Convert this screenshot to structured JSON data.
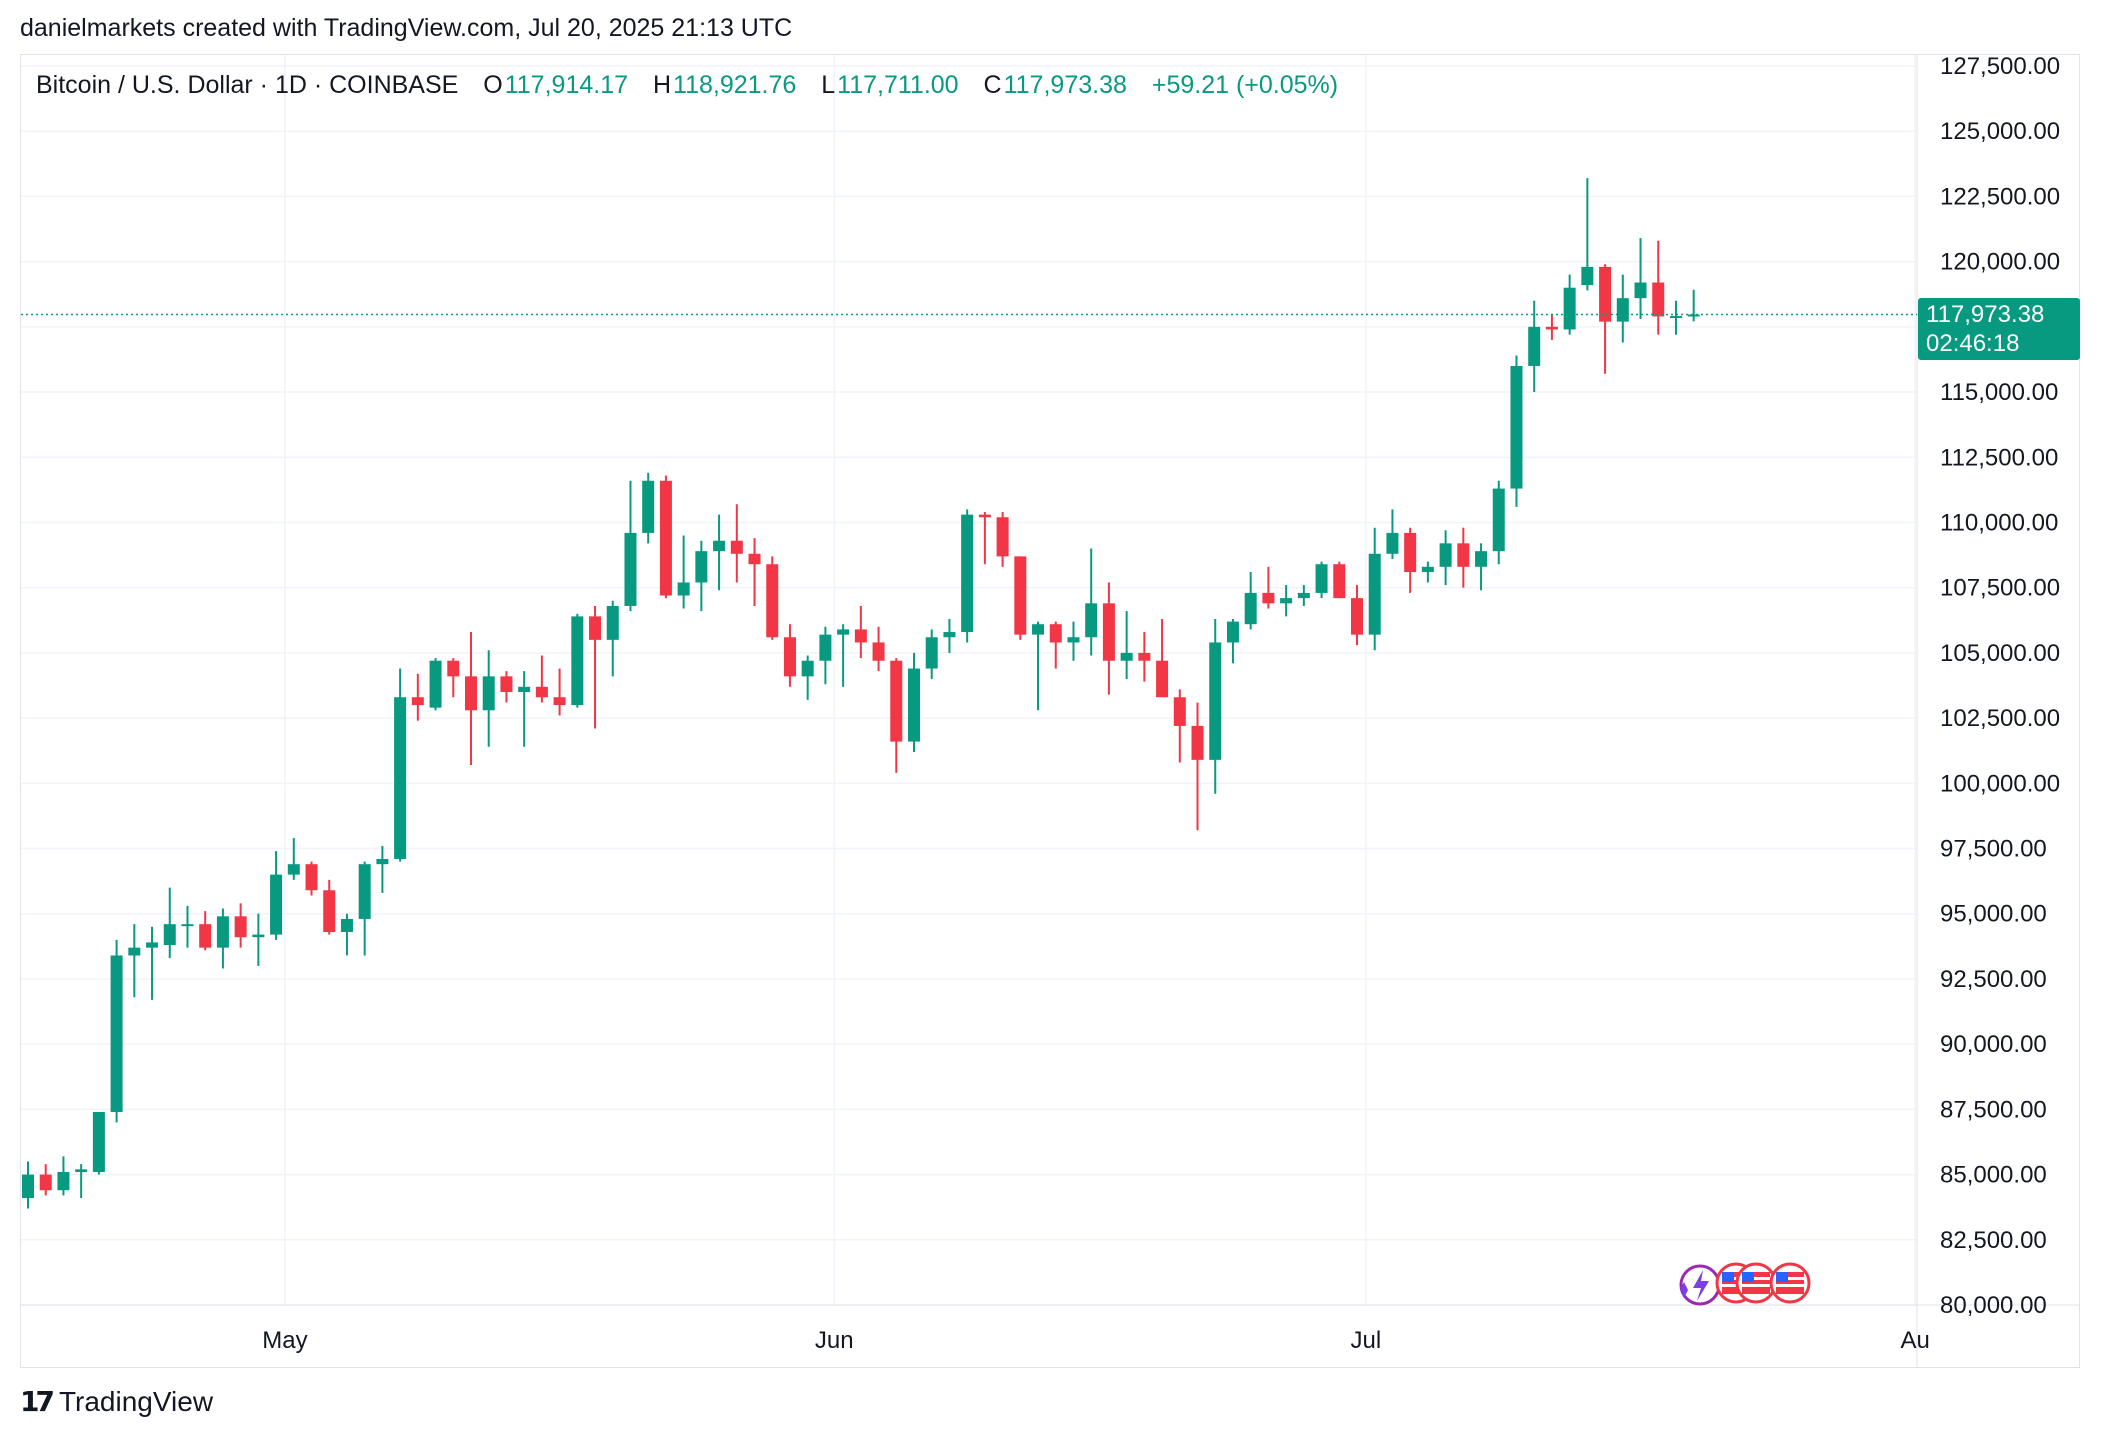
{
  "caption": "danielmarkets created with TradingView.com, Jul 20, 2025 21:13 UTC",
  "legend": {
    "symbol": "Bitcoin / U.S. Dollar · 1D · COINBASE",
    "o_label": "O",
    "o_value": "117,914.17",
    "h_label": "H",
    "h_value": "118,921.76",
    "l_label": "L",
    "l_value": "117,711.00",
    "c_label": "C",
    "c_value": "117,973.38",
    "change": "+59.21 (+0.05%)"
  },
  "last_price": {
    "price": "117,973.38",
    "countdown": "02:46:18"
  },
  "footer": {
    "brand": "TradingView",
    "mark": "17"
  },
  "colors": {
    "up": "#089981",
    "down": "#f23645",
    "grid": "#f0f3fa",
    "axis_text": "#131722"
  },
  "chart_data": {
    "type": "candlestick",
    "title": "Bitcoin / U.S. Dollar · 1D · COINBASE",
    "xlabel": "",
    "ylabel": "",
    "ylim": [
      80000,
      127500
    ],
    "y_ticks": [
      "127,500.00",
      "125,000.00",
      "122,500.00",
      "120,000.00",
      "115,000.00",
      "112,500.00",
      "110,000.00",
      "107,500.00",
      "105,000.00",
      "102,500.00",
      "100,000.00",
      "97,500.00",
      "95,000.00",
      "92,500.00",
      "90,000.00",
      "87,500.00",
      "85,000.00",
      "82,500.00",
      "80,000.00"
    ],
    "x_ticks": [
      {
        "label": "May",
        "index": 14.5
      },
      {
        "label": "Jun",
        "index": 45.5
      },
      {
        "label": "Jul",
        "index": 75.5
      },
      {
        "label": "Au",
        "index": 106.5
      }
    ],
    "last_close": 117973.38,
    "series": [
      {
        "date": "2025-04-16",
        "o": 84100,
        "h": 85500,
        "l": 83700,
        "c": 85000
      },
      {
        "date": "2025-04-17",
        "o": 85000,
        "h": 85400,
        "l": 84200,
        "c": 84400
      },
      {
        "date": "2025-04-18",
        "o": 84400,
        "h": 85700,
        "l": 84200,
        "c": 85100
      },
      {
        "date": "2025-04-19",
        "o": 85100,
        "h": 85400,
        "l": 84100,
        "c": 85200
      },
      {
        "date": "2025-04-20",
        "o": 85100,
        "h": 87400,
        "l": 85000,
        "c": 87400
      },
      {
        "date": "2025-04-21",
        "o": 87400,
        "h": 94000,
        "l": 87000,
        "c": 93400
      },
      {
        "date": "2025-04-22",
        "o": 93400,
        "h": 94600,
        "l": 91800,
        "c": 93700
      },
      {
        "date": "2025-04-23",
        "o": 93700,
        "h": 94500,
        "l": 91700,
        "c": 93900
      },
      {
        "date": "2025-04-24",
        "o": 93800,
        "h": 96000,
        "l": 93300,
        "c": 94600
      },
      {
        "date": "2025-04-25",
        "o": 94600,
        "h": 95300,
        "l": 93700,
        "c": 94600
      },
      {
        "date": "2025-04-26",
        "o": 94600,
        "h": 95100,
        "l": 93600,
        "c": 93700
      },
      {
        "date": "2025-04-27",
        "o": 93700,
        "h": 95200,
        "l": 92900,
        "c": 94900
      },
      {
        "date": "2025-04-28",
        "o": 94900,
        "h": 95400,
        "l": 93700,
        "c": 94100
      },
      {
        "date": "2025-04-29",
        "o": 94100,
        "h": 95000,
        "l": 93000,
        "c": 94200
      },
      {
        "date": "2025-04-30",
        "o": 94200,
        "h": 97400,
        "l": 94000,
        "c": 96500
      },
      {
        "date": "2025-05-01",
        "o": 96500,
        "h": 97900,
        "l": 96300,
        "c": 96900
      },
      {
        "date": "2025-05-02",
        "o": 96900,
        "h": 97000,
        "l": 95700,
        "c": 95900
      },
      {
        "date": "2025-05-03",
        "o": 95900,
        "h": 96300,
        "l": 94200,
        "c": 94300
      },
      {
        "date": "2025-05-04",
        "o": 94300,
        "h": 95000,
        "l": 93400,
        "c": 94800
      },
      {
        "date": "2025-05-05",
        "o": 94800,
        "h": 97000,
        "l": 93400,
        "c": 96900
      },
      {
        "date": "2025-05-06",
        "o": 96900,
        "h": 97600,
        "l": 95800,
        "c": 97100
      },
      {
        "date": "2025-05-07",
        "o": 97100,
        "h": 104400,
        "l": 97000,
        "c": 103300
      },
      {
        "date": "2025-05-08",
        "o": 103300,
        "h": 104200,
        "l": 102400,
        "c": 103000
      },
      {
        "date": "2025-05-09",
        "o": 102900,
        "h": 104800,
        "l": 102800,
        "c": 104700
      },
      {
        "date": "2025-05-10",
        "o": 104700,
        "h": 104800,
        "l": 103300,
        "c": 104100
      },
      {
        "date": "2025-05-11",
        "o": 104100,
        "h": 105800,
        "l": 100700,
        "c": 102800
      },
      {
        "date": "2025-05-12",
        "o": 102800,
        "h": 105100,
        "l": 101400,
        "c": 104100
      },
      {
        "date": "2025-05-13",
        "o": 104100,
        "h": 104300,
        "l": 103100,
        "c": 103500
      },
      {
        "date": "2025-05-14",
        "o": 103500,
        "h": 104300,
        "l": 101400,
        "c": 103700
      },
      {
        "date": "2025-05-15",
        "o": 103700,
        "h": 104900,
        "l": 103100,
        "c": 103300
      },
      {
        "date": "2025-05-16",
        "o": 103300,
        "h": 104400,
        "l": 102600,
        "c": 103000
      },
      {
        "date": "2025-05-17",
        "o": 103000,
        "h": 106500,
        "l": 102900,
        "c": 106400
      },
      {
        "date": "2025-05-18",
        "o": 106400,
        "h": 106800,
        "l": 102100,
        "c": 105500
      },
      {
        "date": "2025-05-19",
        "o": 105500,
        "h": 107000,
        "l": 104100,
        "c": 106800
      },
      {
        "date": "2025-05-20",
        "o": 106800,
        "h": 111600,
        "l": 106600,
        "c": 109600
      },
      {
        "date": "2025-05-21",
        "o": 109600,
        "h": 111900,
        "l": 109200,
        "c": 111600
      },
      {
        "date": "2025-05-22",
        "o": 111600,
        "h": 111800,
        "l": 107100,
        "c": 107200
      },
      {
        "date": "2025-05-23",
        "o": 107200,
        "h": 109500,
        "l": 106700,
        "c": 107700
      },
      {
        "date": "2025-05-24",
        "o": 107700,
        "h": 109300,
        "l": 106600,
        "c": 108900
      },
      {
        "date": "2025-05-25",
        "o": 108900,
        "h": 110300,
        "l": 107400,
        "c": 109300
      },
      {
        "date": "2025-05-26",
        "o": 109300,
        "h": 110700,
        "l": 107700,
        "c": 108800
      },
      {
        "date": "2025-05-27",
        "o": 108800,
        "h": 109400,
        "l": 106800,
        "c": 108400
      },
      {
        "date": "2025-05-28",
        "o": 108400,
        "h": 108700,
        "l": 105500,
        "c": 105600
      },
      {
        "date": "2025-05-29",
        "o": 105600,
        "h": 106100,
        "l": 103700,
        "c": 104100
      },
      {
        "date": "2025-05-30",
        "o": 104100,
        "h": 104900,
        "l": 103200,
        "c": 104700
      },
      {
        "date": "2025-05-31",
        "o": 104700,
        "h": 106000,
        "l": 103800,
        "c": 105700
      },
      {
        "date": "2025-06-01",
        "o": 105700,
        "h": 106100,
        "l": 103700,
        "c": 105900
      },
      {
        "date": "2025-06-02",
        "o": 105900,
        "h": 106800,
        "l": 104800,
        "c": 105400
      },
      {
        "date": "2025-06-03",
        "o": 105400,
        "h": 106000,
        "l": 104300,
        "c": 104700
      },
      {
        "date": "2025-06-04",
        "o": 104700,
        "h": 104800,
        "l": 100400,
        "c": 101600
      },
      {
        "date": "2025-06-05",
        "o": 101600,
        "h": 105000,
        "l": 101200,
        "c": 104400
      },
      {
        "date": "2025-06-06",
        "o": 104400,
        "h": 105900,
        "l": 104000,
        "c": 105600
      },
      {
        "date": "2025-06-07",
        "o": 105600,
        "h": 106300,
        "l": 105000,
        "c": 105800
      },
      {
        "date": "2025-06-08",
        "o": 105800,
        "h": 110500,
        "l": 105400,
        "c": 110300
      },
      {
        "date": "2025-06-09",
        "o": 110300,
        "h": 110400,
        "l": 108400,
        "c": 110200
      },
      {
        "date": "2025-06-10",
        "o": 110200,
        "h": 110400,
        "l": 108300,
        "c": 108700
      },
      {
        "date": "2025-06-11",
        "o": 108700,
        "h": 108700,
        "l": 105500,
        "c": 105700
      },
      {
        "date": "2025-06-12",
        "o": 105700,
        "h": 106200,
        "l": 102800,
        "c": 106100
      },
      {
        "date": "2025-06-13",
        "o": 106100,
        "h": 106200,
        "l": 104400,
        "c": 105400
      },
      {
        "date": "2025-06-14",
        "o": 105400,
        "h": 106200,
        "l": 104700,
        "c": 105600
      },
      {
        "date": "2025-06-15",
        "o": 105600,
        "h": 109000,
        "l": 104900,
        "c": 106900
      },
      {
        "date": "2025-06-16",
        "o": 106900,
        "h": 107700,
        "l": 103400,
        "c": 104700
      },
      {
        "date": "2025-06-17",
        "o": 104700,
        "h": 106600,
        "l": 104000,
        "c": 105000
      },
      {
        "date": "2025-06-18",
        "o": 105000,
        "h": 105800,
        "l": 103900,
        "c": 104700
      },
      {
        "date": "2025-06-19",
        "o": 104700,
        "h": 106300,
        "l": 103500,
        "c": 103300
      },
      {
        "date": "2025-06-20",
        "o": 103300,
        "h": 103600,
        "l": 100800,
        "c": 102200
      },
      {
        "date": "2025-06-21",
        "o": 102200,
        "h": 103100,
        "l": 98200,
        "c": 100900
      },
      {
        "date": "2025-06-22",
        "o": 100900,
        "h": 106300,
        "l": 99600,
        "c": 105400
      },
      {
        "date": "2025-06-23",
        "o": 105400,
        "h": 106300,
        "l": 104600,
        "c": 106200
      },
      {
        "date": "2025-06-24",
        "o": 106100,
        "h": 108100,
        "l": 105900,
        "c": 107300
      },
      {
        "date": "2025-06-25",
        "o": 107300,
        "h": 108300,
        "l": 106700,
        "c": 106900
      },
      {
        "date": "2025-06-26",
        "o": 106900,
        "h": 107600,
        "l": 106400,
        "c": 107100
      },
      {
        "date": "2025-06-27",
        "o": 107100,
        "h": 107600,
        "l": 106800,
        "c": 107300
      },
      {
        "date": "2025-06-28",
        "o": 107300,
        "h": 108500,
        "l": 107100,
        "c": 108400
      },
      {
        "date": "2025-06-29",
        "o": 108400,
        "h": 108500,
        "l": 107100,
        "c": 107100
      },
      {
        "date": "2025-06-30",
        "o": 107100,
        "h": 107600,
        "l": 105300,
        "c": 105700
      },
      {
        "date": "2025-07-01",
        "o": 105700,
        "h": 109800,
        "l": 105100,
        "c": 108800
      },
      {
        "date": "2025-07-02",
        "o": 108800,
        "h": 110500,
        "l": 108600,
        "c": 109600
      },
      {
        "date": "2025-07-03",
        "o": 109600,
        "h": 109800,
        "l": 107300,
        "c": 108100
      },
      {
        "date": "2025-07-04",
        "o": 108100,
        "h": 108500,
        "l": 107700,
        "c": 108300
      },
      {
        "date": "2025-07-05",
        "o": 108300,
        "h": 109700,
        "l": 107600,
        "c": 109200
      },
      {
        "date": "2025-07-06",
        "o": 109200,
        "h": 109800,
        "l": 107500,
        "c": 108300
      },
      {
        "date": "2025-07-07",
        "o": 108300,
        "h": 109200,
        "l": 107400,
        "c": 108900
      },
      {
        "date": "2025-07-08",
        "o": 108900,
        "h": 111600,
        "l": 108400,
        "c": 111300
      },
      {
        "date": "2025-07-09",
        "o": 111300,
        "h": 116400,
        "l": 110600,
        "c": 116000
      },
      {
        "date": "2025-07-10",
        "o": 116000,
        "h": 118500,
        "l": 115000,
        "c": 117500
      },
      {
        "date": "2025-07-11",
        "o": 117500,
        "h": 118000,
        "l": 117000,
        "c": 117400
      },
      {
        "date": "2025-07-12",
        "o": 117400,
        "h": 119500,
        "l": 117200,
        "c": 119000
      },
      {
        "date": "2025-07-13",
        "o": 119100,
        "h": 123200,
        "l": 118900,
        "c": 119800
      },
      {
        "date": "2025-07-14",
        "o": 119800,
        "h": 119900,
        "l": 115700,
        "c": 117700
      },
      {
        "date": "2025-07-15",
        "o": 117700,
        "h": 119500,
        "l": 116900,
        "c": 118600
      },
      {
        "date": "2025-07-16",
        "o": 118600,
        "h": 120900,
        "l": 117800,
        "c": 119200
      },
      {
        "date": "2025-07-17",
        "o": 119200,
        "h": 120800,
        "l": 117200,
        "c": 117900
      },
      {
        "date": "2025-07-18",
        "o": 117900,
        "h": 118500,
        "l": 117200,
        "c": 117914
      },
      {
        "date": "2025-07-19",
        "o": 117914.17,
        "h": 118921.76,
        "l": 117711,
        "c": 117973.38
      }
    ]
  }
}
